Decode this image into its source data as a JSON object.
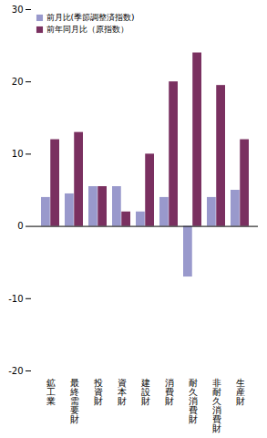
{
  "chart_data": {
    "type": "bar",
    "categories": [
      "鉱\n工\n業",
      "最\n終\n需\n要\n財",
      "投\n資\n財",
      "資\n本\n財",
      "建\n設\n財",
      "消\n費\n財",
      "耐\n久\n消\n費\n財",
      "非\n耐\n久\n消\n費\n財",
      "生\n産\n財"
    ],
    "series": [
      {
        "name": "前月比(季節調整済指数)",
        "color": "#9999cc",
        "values": [
          4.0,
          4.5,
          5.5,
          5.5,
          2.0,
          4.0,
          -7.0,
          4.0,
          5.0
        ]
      },
      {
        "name": "前年同月比（原指数）",
        "color": "#7a3060",
        "values": [
          12.0,
          13.0,
          5.5,
          2.0,
          10.0,
          20.0,
          24.0,
          19.5,
          12.0
        ]
      }
    ],
    "ylim": [
      -20,
      30
    ],
    "yticks": [
      -20,
      -10,
      0,
      10,
      20,
      30
    ],
    "legend": "upper left",
    "grid": false
  }
}
